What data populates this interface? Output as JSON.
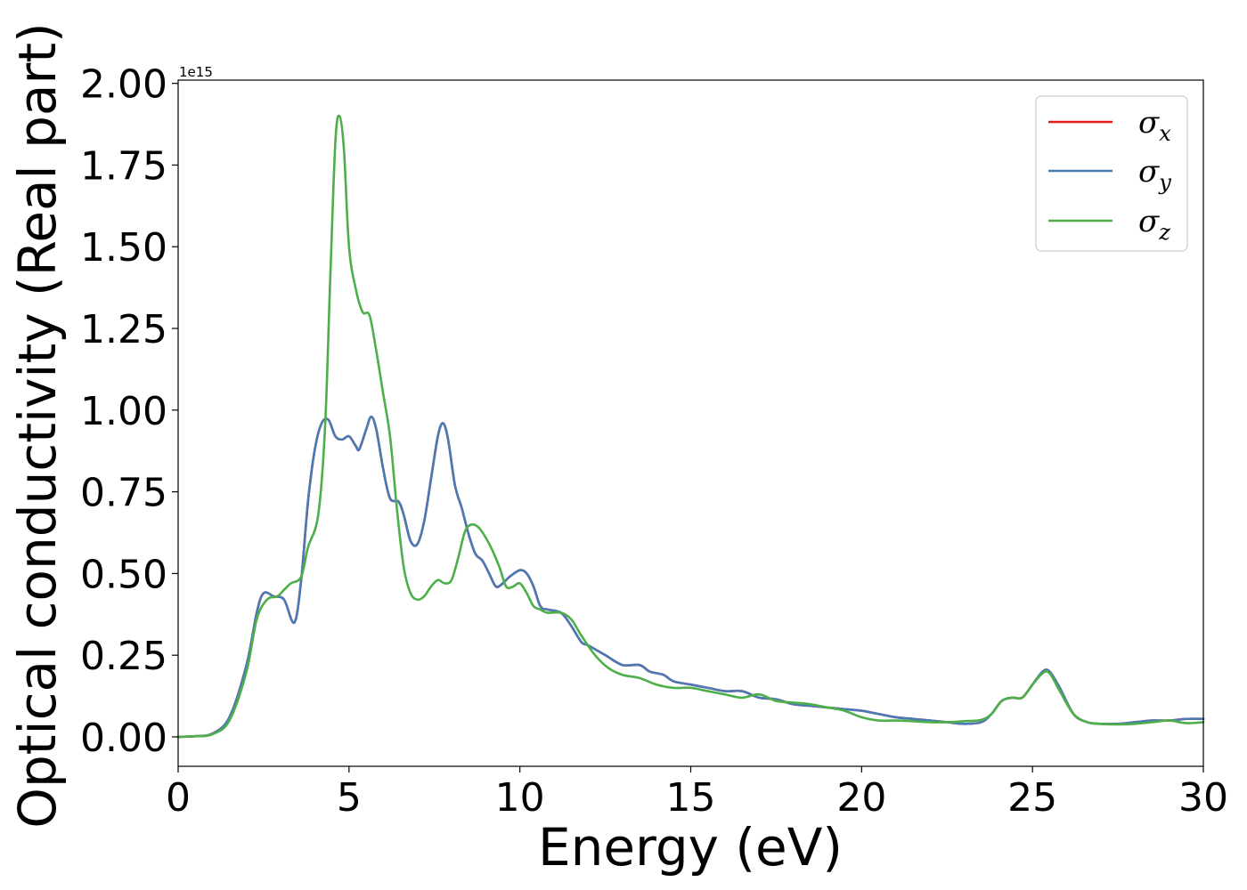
{
  "chart_data": {
    "type": "line",
    "xlabel": "Energy (eV)",
    "ylabel": "Optical conductivity (Real part)",
    "y_offset_label": "1e15",
    "xlim": [
      0,
      30
    ],
    "ylim": [
      -0.09,
      2.01
    ],
    "x_ticks": [
      0,
      5,
      10,
      15,
      20,
      25,
      30
    ],
    "x_tick_labels": [
      "0",
      "5",
      "10",
      "15",
      "20",
      "25",
      "30"
    ],
    "y_ticks": [
      0.0,
      0.25,
      0.5,
      0.75,
      1.0,
      1.25,
      1.5,
      1.75,
      2.0
    ],
    "y_tick_labels": [
      "0.00",
      "0.25",
      "0.50",
      "0.75",
      "1.00",
      "1.25",
      "1.50",
      "1.75",
      "2.00"
    ],
    "grid": false,
    "legend_position": "top-right",
    "series": [
      {
        "name": "σx",
        "symbol": "σ",
        "subscript": "x",
        "color": "#e41a1c",
        "points": [
          [
            0,
            0
          ],
          [
            0.5,
            0.002
          ],
          [
            1.0,
            0.01
          ],
          [
            1.5,
            0.06
          ],
          [
            2.0,
            0.22
          ],
          [
            2.3,
            0.38
          ],
          [
            2.5,
            0.44
          ],
          [
            2.8,
            0.43
          ],
          [
            3.1,
            0.42
          ],
          [
            3.4,
            0.35
          ],
          [
            3.6,
            0.48
          ],
          [
            3.8,
            0.72
          ],
          [
            4.0,
            0.88
          ],
          [
            4.2,
            0.96
          ],
          [
            4.4,
            0.97
          ],
          [
            4.6,
            0.92
          ],
          [
            4.8,
            0.91
          ],
          [
            5.0,
            0.92
          ],
          [
            5.2,
            0.89
          ],
          [
            5.3,
            0.88
          ],
          [
            5.5,
            0.94
          ],
          [
            5.65,
            0.98
          ],
          [
            5.8,
            0.94
          ],
          [
            6.0,
            0.82
          ],
          [
            6.2,
            0.73
          ],
          [
            6.45,
            0.72
          ],
          [
            6.6,
            0.68
          ],
          [
            6.8,
            0.6
          ],
          [
            7.0,
            0.59
          ],
          [
            7.2,
            0.66
          ],
          [
            7.4,
            0.79
          ],
          [
            7.6,
            0.92
          ],
          [
            7.75,
            0.96
          ],
          [
            7.9,
            0.91
          ],
          [
            8.1,
            0.77
          ],
          [
            8.3,
            0.7
          ],
          [
            8.5,
            0.62
          ],
          [
            8.7,
            0.56
          ],
          [
            8.9,
            0.54
          ],
          [
            9.1,
            0.5
          ],
          [
            9.3,
            0.46
          ],
          [
            9.5,
            0.47
          ],
          [
            9.7,
            0.49
          ],
          [
            10.0,
            0.51
          ],
          [
            10.2,
            0.5
          ],
          [
            10.4,
            0.46
          ],
          [
            10.6,
            0.4
          ],
          [
            10.8,
            0.39
          ],
          [
            11.2,
            0.38
          ],
          [
            11.5,
            0.34
          ],
          [
            11.8,
            0.29
          ],
          [
            12.0,
            0.28
          ],
          [
            12.5,
            0.25
          ],
          [
            13.0,
            0.22
          ],
          [
            13.5,
            0.22
          ],
          [
            13.8,
            0.2
          ],
          [
            14.2,
            0.19
          ],
          [
            14.5,
            0.17
          ],
          [
            15.0,
            0.16
          ],
          [
            15.5,
            0.15
          ],
          [
            16.0,
            0.14
          ],
          [
            16.5,
            0.14
          ],
          [
            17.0,
            0.12
          ],
          [
            17.5,
            0.115
          ],
          [
            18.0,
            0.1
          ],
          [
            18.5,
            0.095
          ],
          [
            19.0,
            0.09
          ],
          [
            19.5,
            0.085
          ],
          [
            20.0,
            0.08
          ],
          [
            20.5,
            0.07
          ],
          [
            21.0,
            0.06
          ],
          [
            21.5,
            0.055
          ],
          [
            22.0,
            0.05
          ],
          [
            22.5,
            0.045
          ],
          [
            23.0,
            0.04
          ],
          [
            23.5,
            0.045
          ],
          [
            23.8,
            0.07
          ],
          [
            24.1,
            0.11
          ],
          [
            24.4,
            0.12
          ],
          [
            24.7,
            0.12
          ],
          [
            25.0,
            0.16
          ],
          [
            25.3,
            0.2
          ],
          [
            25.5,
            0.2
          ],
          [
            25.8,
            0.15
          ],
          [
            26.2,
            0.07
          ],
          [
            26.6,
            0.045
          ],
          [
            27.0,
            0.04
          ],
          [
            27.5,
            0.04
          ],
          [
            28.0,
            0.045
          ],
          [
            28.5,
            0.05
          ],
          [
            29.0,
            0.05
          ],
          [
            29.5,
            0.055
          ],
          [
            30.0,
            0.055
          ]
        ]
      },
      {
        "name": "σy",
        "symbol": "σ",
        "subscript": "y",
        "color": "#4a7ab5",
        "points": [
          [
            0,
            0
          ],
          [
            0.5,
            0.002
          ],
          [
            1.0,
            0.01
          ],
          [
            1.5,
            0.06
          ],
          [
            2.0,
            0.22
          ],
          [
            2.3,
            0.38
          ],
          [
            2.5,
            0.44
          ],
          [
            2.8,
            0.43
          ],
          [
            3.1,
            0.42
          ],
          [
            3.4,
            0.35
          ],
          [
            3.6,
            0.48
          ],
          [
            3.8,
            0.72
          ],
          [
            4.0,
            0.88
          ],
          [
            4.2,
            0.96
          ],
          [
            4.4,
            0.97
          ],
          [
            4.6,
            0.92
          ],
          [
            4.8,
            0.91
          ],
          [
            5.0,
            0.92
          ],
          [
            5.2,
            0.89
          ],
          [
            5.3,
            0.88
          ],
          [
            5.5,
            0.94
          ],
          [
            5.65,
            0.98
          ],
          [
            5.8,
            0.94
          ],
          [
            6.0,
            0.82
          ],
          [
            6.2,
            0.73
          ],
          [
            6.45,
            0.72
          ],
          [
            6.6,
            0.68
          ],
          [
            6.8,
            0.6
          ],
          [
            7.0,
            0.59
          ],
          [
            7.2,
            0.66
          ],
          [
            7.4,
            0.79
          ],
          [
            7.6,
            0.92
          ],
          [
            7.75,
            0.96
          ],
          [
            7.9,
            0.91
          ],
          [
            8.1,
            0.77
          ],
          [
            8.3,
            0.7
          ],
          [
            8.5,
            0.62
          ],
          [
            8.7,
            0.56
          ],
          [
            8.9,
            0.54
          ],
          [
            9.1,
            0.5
          ],
          [
            9.3,
            0.46
          ],
          [
            9.5,
            0.47
          ],
          [
            9.7,
            0.49
          ],
          [
            10.0,
            0.51
          ],
          [
            10.2,
            0.5
          ],
          [
            10.4,
            0.46
          ],
          [
            10.6,
            0.4
          ],
          [
            10.8,
            0.39
          ],
          [
            11.2,
            0.38
          ],
          [
            11.5,
            0.34
          ],
          [
            11.8,
            0.29
          ],
          [
            12.0,
            0.28
          ],
          [
            12.5,
            0.25
          ],
          [
            13.0,
            0.22
          ],
          [
            13.5,
            0.22
          ],
          [
            13.8,
            0.2
          ],
          [
            14.2,
            0.19
          ],
          [
            14.5,
            0.17
          ],
          [
            15.0,
            0.16
          ],
          [
            15.5,
            0.15
          ],
          [
            16.0,
            0.14
          ],
          [
            16.5,
            0.14
          ],
          [
            17.0,
            0.12
          ],
          [
            17.5,
            0.115
          ],
          [
            18.0,
            0.1
          ],
          [
            18.5,
            0.095
          ],
          [
            19.0,
            0.09
          ],
          [
            19.5,
            0.085
          ],
          [
            20.0,
            0.08
          ],
          [
            20.5,
            0.07
          ],
          [
            21.0,
            0.06
          ],
          [
            21.5,
            0.055
          ],
          [
            22.0,
            0.05
          ],
          [
            22.5,
            0.045
          ],
          [
            23.0,
            0.04
          ],
          [
            23.5,
            0.045
          ],
          [
            23.8,
            0.07
          ],
          [
            24.1,
            0.11
          ],
          [
            24.4,
            0.12
          ],
          [
            24.7,
            0.12
          ],
          [
            25.0,
            0.16
          ],
          [
            25.3,
            0.2
          ],
          [
            25.5,
            0.2
          ],
          [
            25.8,
            0.15
          ],
          [
            26.2,
            0.07
          ],
          [
            26.6,
            0.045
          ],
          [
            27.0,
            0.04
          ],
          [
            27.5,
            0.04
          ],
          [
            28.0,
            0.045
          ],
          [
            28.5,
            0.05
          ],
          [
            29.0,
            0.05
          ],
          [
            29.5,
            0.055
          ],
          [
            30.0,
            0.055
          ]
        ]
      },
      {
        "name": "σz",
        "symbol": "σ",
        "subscript": "z",
        "color": "#4daf4a",
        "points": [
          [
            0,
            0
          ],
          [
            0.5,
            0.002
          ],
          [
            1.0,
            0.008
          ],
          [
            1.5,
            0.05
          ],
          [
            2.0,
            0.2
          ],
          [
            2.3,
            0.36
          ],
          [
            2.6,
            0.42
          ],
          [
            2.9,
            0.43
          ],
          [
            3.1,
            0.45
          ],
          [
            3.3,
            0.47
          ],
          [
            3.6,
            0.49
          ],
          [
            3.8,
            0.58
          ],
          [
            4.1,
            0.68
          ],
          [
            4.3,
            0.95
          ],
          [
            4.45,
            1.4
          ],
          [
            4.6,
            1.82
          ],
          [
            4.72,
            1.9
          ],
          [
            4.85,
            1.8
          ],
          [
            5.0,
            1.5
          ],
          [
            5.2,
            1.37
          ],
          [
            5.4,
            1.3
          ],
          [
            5.6,
            1.29
          ],
          [
            5.8,
            1.18
          ],
          [
            6.0,
            1.05
          ],
          [
            6.2,
            0.92
          ],
          [
            6.4,
            0.7
          ],
          [
            6.6,
            0.52
          ],
          [
            6.8,
            0.44
          ],
          [
            7.0,
            0.42
          ],
          [
            7.2,
            0.43
          ],
          [
            7.4,
            0.46
          ],
          [
            7.6,
            0.48
          ],
          [
            7.8,
            0.47
          ],
          [
            8.0,
            0.48
          ],
          [
            8.2,
            0.55
          ],
          [
            8.4,
            0.63
          ],
          [
            8.6,
            0.65
          ],
          [
            8.8,
            0.64
          ],
          [
            9.0,
            0.61
          ],
          [
            9.2,
            0.57
          ],
          [
            9.4,
            0.52
          ],
          [
            9.6,
            0.46
          ],
          [
            9.8,
            0.46
          ],
          [
            10.0,
            0.47
          ],
          [
            10.2,
            0.44
          ],
          [
            10.4,
            0.4
          ],
          [
            10.6,
            0.39
          ],
          [
            10.8,
            0.38
          ],
          [
            11.2,
            0.38
          ],
          [
            11.5,
            0.36
          ],
          [
            11.8,
            0.31
          ],
          [
            12.2,
            0.25
          ],
          [
            12.6,
            0.21
          ],
          [
            13.0,
            0.19
          ],
          [
            13.5,
            0.18
          ],
          [
            14.0,
            0.16
          ],
          [
            14.5,
            0.15
          ],
          [
            15.0,
            0.15
          ],
          [
            15.5,
            0.14
          ],
          [
            16.0,
            0.13
          ],
          [
            16.5,
            0.12
          ],
          [
            17.0,
            0.13
          ],
          [
            17.5,
            0.11
          ],
          [
            18.0,
            0.105
          ],
          [
            18.5,
            0.1
          ],
          [
            19.0,
            0.09
          ],
          [
            19.5,
            0.08
          ],
          [
            20.0,
            0.06
          ],
          [
            20.5,
            0.05
          ],
          [
            21.0,
            0.05
          ],
          [
            21.5,
            0.048
          ],
          [
            22.0,
            0.045
          ],
          [
            22.5,
            0.045
          ],
          [
            23.0,
            0.048
          ],
          [
            23.5,
            0.052
          ],
          [
            23.8,
            0.07
          ],
          [
            24.1,
            0.11
          ],
          [
            24.4,
            0.12
          ],
          [
            24.7,
            0.12
          ],
          [
            25.0,
            0.16
          ],
          [
            25.3,
            0.195
          ],
          [
            25.5,
            0.195
          ],
          [
            25.8,
            0.14
          ],
          [
            26.2,
            0.07
          ],
          [
            26.6,
            0.045
          ],
          [
            27.0,
            0.04
          ],
          [
            27.5,
            0.038
          ],
          [
            28.0,
            0.04
          ],
          [
            28.5,
            0.045
          ],
          [
            29.0,
            0.05
          ],
          [
            29.5,
            0.042
          ],
          [
            30.0,
            0.045
          ]
        ]
      }
    ]
  }
}
